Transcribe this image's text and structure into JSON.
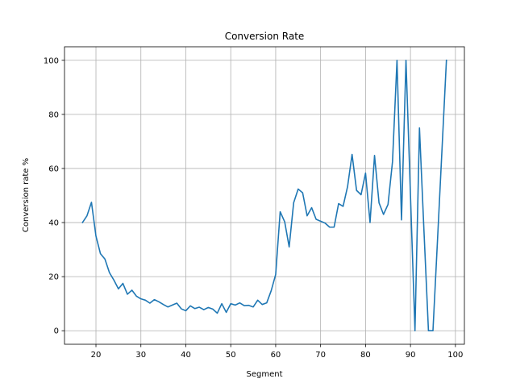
{
  "chart_data": {
    "type": "line",
    "title": "Conversion Rate",
    "xlabel": "Segment",
    "ylabel": "Conversion rate %",
    "xlim": [
      13,
      102
    ],
    "ylim": [
      -5,
      105
    ],
    "xticks": [
      20,
      30,
      40,
      50,
      60,
      70,
      80,
      90,
      100
    ],
    "yticks": [
      0,
      20,
      40,
      60,
      80,
      100
    ],
    "grid": true,
    "legend": "none",
    "series": [
      {
        "color": "#1f77b4",
        "x": [
          17,
          18,
          19,
          20,
          21,
          22,
          23,
          24,
          25,
          26,
          27,
          28,
          29,
          30,
          31,
          32,
          33,
          34,
          35,
          36,
          37,
          38,
          39,
          40,
          41,
          42,
          43,
          44,
          45,
          46,
          47,
          48,
          49,
          50,
          51,
          52,
          53,
          54,
          55,
          56,
          57,
          58,
          59,
          60,
          61,
          62,
          63,
          64,
          65,
          66,
          67,
          68,
          69,
          70,
          71,
          72,
          73,
          74,
          75,
          76,
          77,
          78,
          79,
          80,
          81,
          82,
          83,
          84,
          85,
          86,
          87,
          88,
          89,
          90,
          91,
          92,
          93,
          94,
          95,
          96,
          97,
          98
        ],
        "y": [
          40,
          42.5,
          47.5,
          35,
          28.5,
          26.5,
          21.5,
          18.7,
          15.5,
          17.5,
          13.5,
          15,
          12.8,
          11.8,
          11.3,
          10.2,
          11.5,
          10.7,
          9.7,
          8.8,
          9.5,
          10.2,
          8.1,
          7.4,
          9.2,
          8.2,
          8.7,
          7.8,
          8.6,
          8,
          6.5,
          10,
          6.8,
          10,
          9.5,
          10.3,
          9.3,
          9.4,
          8.8,
          11.3,
          9.7,
          10.3,
          14.8,
          20.8,
          44,
          40.3,
          31,
          47.3,
          52.4,
          51,
          42.5,
          45.5,
          41.2,
          40.5,
          39.8,
          38.3,
          38.3,
          47,
          46,
          53.3,
          65.2,
          51.9,
          50.3,
          58.3,
          40,
          64.8,
          47.3,
          43,
          46.7,
          62.5,
          100,
          41,
          100,
          50,
          0,
          75,
          37,
          0,
          0,
          33,
          66.5,
          100
        ]
      }
    ]
  }
}
